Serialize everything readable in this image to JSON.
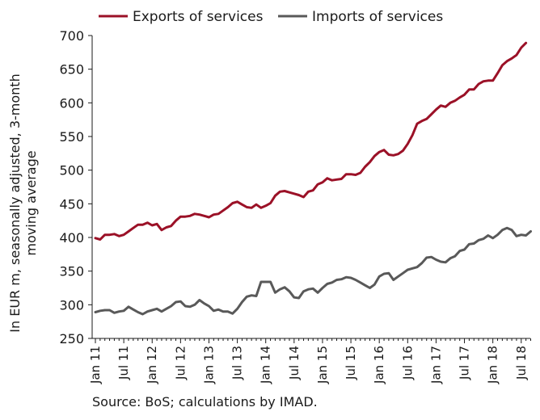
{
  "chart_data": {
    "type": "line",
    "title": "",
    "ylabel_lines": [
      "In EUR m, seasonally adjusted, 3-month",
      "moving average"
    ],
    "xlabel": "",
    "ylim": [
      250,
      700
    ],
    "yticks": [
      250,
      300,
      350,
      400,
      450,
      500,
      550,
      600,
      650,
      700
    ],
    "grid": false,
    "legend_position": "top",
    "x_tick_labels": [
      "Jan 11",
      "Jul 11",
      "Jan 12",
      "Jul 12",
      "Jan 13",
      "Jul 13",
      "Jan 14",
      "Jul 14",
      "Jan 15",
      "Jul 15",
      "Jan 16",
      "Jul 16",
      "Jan 17",
      "Jul 17",
      "Jan 18",
      "Jul 18"
    ],
    "x_start": "2011-01",
    "series": [
      {
        "name": "Exports of services",
        "color": "#9b1127",
        "values": [
          399,
          397,
          404,
          404,
          405,
          402,
          404,
          409,
          414,
          419,
          419,
          422,
          418,
          420,
          411,
          415,
          417,
          425,
          431,
          431,
          432,
          435,
          434,
          432,
          430,
          434,
          435,
          440,
          445,
          451,
          453,
          449,
          445,
          444,
          449,
          444,
          447,
          451,
          462,
          468,
          469,
          467,
          465,
          463,
          460,
          468,
          470,
          479,
          482,
          488,
          485,
          486,
          487,
          494,
          494,
          493,
          496,
          505,
          512,
          521,
          527,
          530,
          523,
          522,
          524,
          529,
          539,
          552,
          569,
          573,
          576,
          583,
          590,
          596,
          594,
          600,
          603,
          608,
          612,
          620,
          620,
          628,
          632,
          633,
          633,
          644,
          656,
          662,
          666,
          671,
          682,
          689
        ]
      },
      {
        "name": "Imports of services",
        "color": "#595959",
        "values": [
          289,
          291,
          292,
          292,
          288,
          290,
          291,
          297,
          293,
          289,
          286,
          290,
          292,
          294,
          290,
          294,
          298,
          304,
          305,
          298,
          297,
          300,
          307,
          302,
          298,
          291,
          293,
          290,
          290,
          287,
          294,
          304,
          312,
          314,
          313,
          334,
          334,
          334,
          318,
          323,
          326,
          320,
          311,
          310,
          320,
          323,
          324,
          318,
          325,
          331,
          333,
          337,
          338,
          341,
          340,
          337,
          333,
          329,
          325,
          330,
          342,
          346,
          347,
          337,
          342,
          347,
          352,
          354,
          356,
          362,
          370,
          371,
          367,
          364,
          363,
          369,
          372,
          380,
          382,
          390,
          391,
          396,
          398,
          403,
          399,
          404,
          411,
          414,
          411,
          402,
          404,
          403,
          409
        ]
      }
    ]
  },
  "source_note": "Source: BoS; calculations by IMAD."
}
